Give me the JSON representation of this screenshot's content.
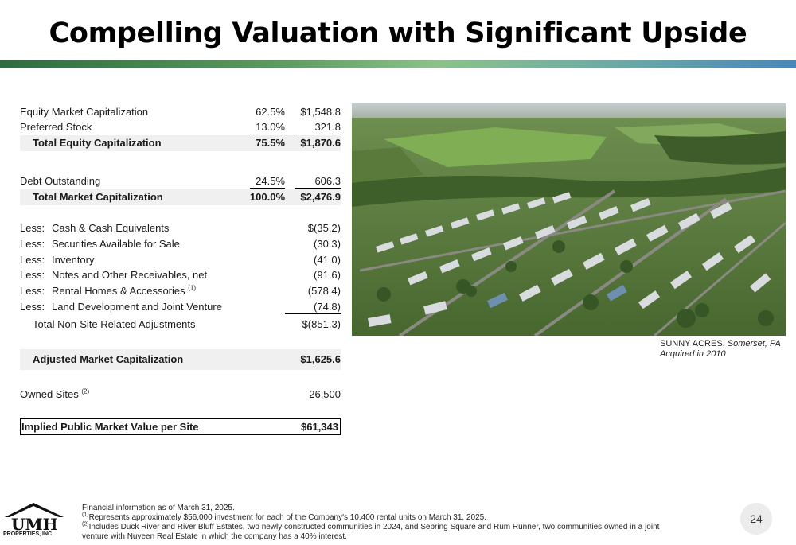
{
  "title": "Compelling Valuation with Significant Upside",
  "table": {
    "equity_market_cap": {
      "label": "Equity Market Capitalization",
      "pct": "62.5%",
      "value": "$1,548.8"
    },
    "preferred_stock": {
      "label": "Preferred Stock",
      "pct": "13.0%",
      "value": "321.8"
    },
    "total_equity_cap": {
      "label": "Total Equity Capitalization",
      "pct": "75.5%",
      "value": "$1,870.6"
    },
    "debt_outstanding": {
      "label": "Debt Outstanding",
      "pct": "24.5%",
      "value": "606.3"
    },
    "total_market_cap": {
      "label": "Total Market Capitalization",
      "pct": "100.0%",
      "value": "$2,476.9"
    },
    "less_prefix": "Less:",
    "less_items": [
      {
        "label": "Cash & Cash Equivalents",
        "value": "$(35.2)"
      },
      {
        "label": "Securities Available for Sale",
        "value": "(30.3)"
      },
      {
        "label": "Inventory",
        "value": "(41.0)"
      },
      {
        "label": "Notes and Other Receivables, net",
        "value": "(91.6)"
      },
      {
        "label": "Rental Homes & Accessories",
        "sup": "(1)",
        "value": "(578.4)"
      },
      {
        "label": "Land Development and Joint Venture",
        "value": "(74.8)"
      }
    ],
    "total_non_site": {
      "label": "Total Non-Site Related Adjustments",
      "value": "$(851.3)"
    },
    "adjusted_market_cap": {
      "label": "Adjusted Market Capitalization",
      "value": "$1,625.6"
    },
    "owned_sites": {
      "label": "Owned Sites",
      "sup": "(2)",
      "value": "26,500"
    },
    "implied_value": {
      "label": "Implied Public Market Value per Site",
      "value": "$61,343"
    }
  },
  "photo": {
    "caption_name": "SUNNY ACRES,",
    "caption_location": "Somerset, PA",
    "caption_acquired": "Acquired in 2010"
  },
  "footer": {
    "logo_text": "UMH",
    "logo_sub": "PROPERTIES, INC",
    "line1": "Financial information as of March 31, 2025.",
    "note1_sup": "(1)",
    "note1": "Represents approximately $56,000 investment for each of the Company's 10,400 rental units on March 31, 2025.",
    "note2_sup": "(2)",
    "note2": "Includes Duck River and River Bluff Estates, two newly constructed communities in 2024, and Sebring Square and Rum Runner, two communities owned in a joint venture with Nuveen Real Estate in which the company has a 40% interest.",
    "page_number": "24"
  }
}
